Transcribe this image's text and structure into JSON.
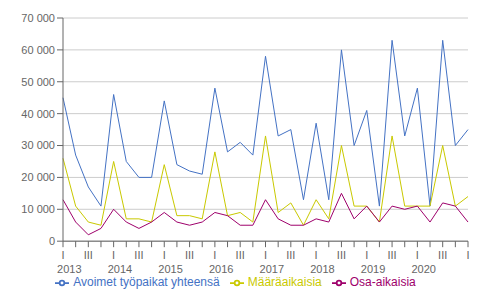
{
  "chart_data": {
    "type": "line",
    "title": "",
    "categories": [
      "I",
      null,
      "III",
      null,
      "I",
      null,
      "III",
      null,
      "I",
      null,
      "III",
      null,
      "I",
      null,
      "III",
      null,
      "I",
      null,
      "III",
      null,
      "I",
      null,
      "III",
      null,
      "I",
      null,
      "III",
      null,
      "I",
      null,
      "III",
      null,
      "I"
    ],
    "series": [
      {
        "name": "Avoimet työpaikat yhteensä",
        "color": "#4472C4",
        "values": [
          45000,
          27000,
          17000,
          11000,
          46000,
          25000,
          20000,
          20000,
          44000,
          24000,
          22000,
          21000,
          48000,
          28000,
          31000,
          27000,
          58000,
          33000,
          35000,
          13000,
          37000,
          13000,
          60000,
          30000,
          41000,
          11000,
          63000,
          33000,
          48000,
          11000,
          63000,
          30000,
          35000
        ]
      },
      {
        "name": "Määräaikaisia",
        "color": "#C9C900",
        "values": [
          26000,
          11000,
          6000,
          5000,
          25000,
          7000,
          7000,
          6000,
          24000,
          8000,
          8000,
          7000,
          28000,
          8000,
          9000,
          6000,
          33000,
          9000,
          12000,
          5000,
          13000,
          7000,
          30000,
          11000,
          11000,
          6000,
          33000,
          11000,
          11000,
          11000,
          30000,
          11000,
          14000
        ]
      },
      {
        "name": "Osa-aikaisia",
        "color": "#9E006B",
        "values": [
          13000,
          6000,
          2000,
          4000,
          10000,
          6000,
          4000,
          6000,
          9000,
          6000,
          5000,
          6000,
          9000,
          8000,
          5000,
          5000,
          13000,
          7000,
          5000,
          5000,
          7000,
          6000,
          15000,
          7000,
          11000,
          6000,
          11000,
          10000,
          11000,
          6000,
          12000,
          11000,
          6000
        ]
      }
    ],
    "ylim": [
      0,
      70000
    ],
    "yticks": [
      0,
      {
        "value": 10000,
        "label": "10 000"
      },
      {
        "value": 20000,
        "label": "20 000"
      },
      {
        "value": 30000,
        "label": "30 000"
      },
      {
        "value": 40000,
        "label": "40 000"
      },
      {
        "value": 50000,
        "label": "50 000"
      },
      {
        "value": 60000,
        "label": "60 000"
      },
      {
        "value": 70000,
        "label": "70 000"
      }
    ],
    "grid": true,
    "annotations": [
      {
        "text": "2013",
        "x": 0.5
      },
      {
        "text": "2014",
        "x": 4.5
      },
      {
        "text": "2015",
        "x": 8.5
      },
      {
        "text": "2016",
        "x": 12.5
      },
      {
        "text": "2017",
        "x": 16.5
      },
      {
        "text": "2018",
        "x": 20.5
      },
      {
        "text": "2019",
        "x": 24.5
      },
      {
        "text": "2020",
        "x": 28.5
      }
    ]
  }
}
